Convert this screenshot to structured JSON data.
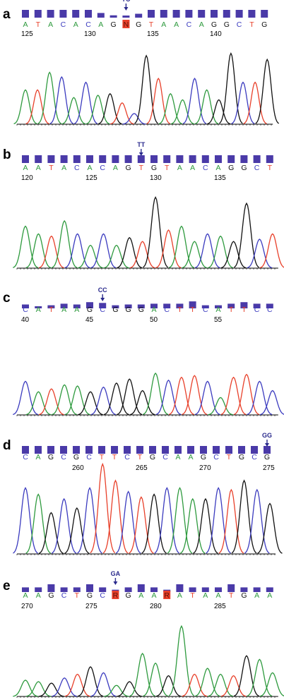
{
  "colors": {
    "A": "#2e9a3e",
    "C": "#3b3bbf",
    "G": "#111111",
    "T": "#e8402a",
    "N": "#e8402a",
    "R": "#e8402a",
    "quality": "#4a3aa8",
    "arrow": "#2a2a8c",
    "baseline": "#000000"
  },
  "chart_data": [
    {
      "type": "line",
      "panel": "a",
      "bases": [
        "A",
        "T",
        "A",
        "C",
        "A",
        "C",
        "A",
        "G",
        "N",
        "G",
        "T",
        "A",
        "A",
        "C",
        "A",
        "G",
        "G",
        "C",
        "T",
        "G"
      ],
      "ambiguous_index": 8,
      "positions": [
        {
          "index": 0,
          "label": "125"
        },
        {
          "index": 5,
          "label": "130"
        },
        {
          "index": 10,
          "label": "135"
        },
        {
          "index": 15,
          "label": "140"
        }
      ],
      "mutation": {
        "label": "TC",
        "index": 8
      },
      "quality": [
        1,
        1,
        1,
        1,
        1,
        1,
        0.6,
        0.3,
        0.2,
        0.5,
        1,
        1,
        1,
        1,
        1,
        1,
        1,
        1,
        1,
        1
      ],
      "peaks": [
        {
          "base": "A",
          "h": 0.45
        },
        {
          "base": "T",
          "h": 0.45
        },
        {
          "base": "A",
          "h": 0.68
        },
        {
          "base": "C",
          "h": 0.62
        },
        {
          "base": "A",
          "h": 0.35
        },
        {
          "base": "C",
          "h": 0.55
        },
        {
          "base": "A",
          "h": 0.38
        },
        {
          "base": "G",
          "h": 0.4
        },
        {
          "base": "T",
          "h": 0.28
        },
        {
          "base": "C",
          "h": 0.14
        },
        {
          "base": "G",
          "h": 0.9
        },
        {
          "base": "T",
          "h": 0.6
        },
        {
          "base": "A",
          "h": 0.4
        },
        {
          "base": "A",
          "h": 0.32
        },
        {
          "base": "C",
          "h": 0.6
        },
        {
          "base": "A",
          "h": 0.45
        },
        {
          "base": "G",
          "h": 0.32
        },
        {
          "base": "G",
          "h": 0.93
        },
        {
          "base": "C",
          "h": 0.55
        },
        {
          "base": "T",
          "h": 0.55
        },
        {
          "base": "G",
          "h": 0.85
        }
      ]
    },
    {
      "type": "line",
      "panel": "b",
      "bases": [
        "A",
        "A",
        "T",
        "A",
        "C",
        "A",
        "C",
        "A",
        "G",
        "T",
        "G",
        "T",
        "A",
        "A",
        "C",
        "A",
        "G",
        "G",
        "C",
        "T"
      ],
      "positions": [
        {
          "index": 0,
          "label": "120"
        },
        {
          "index": 5,
          "label": "125"
        },
        {
          "index": 10,
          "label": "130"
        },
        {
          "index": 15,
          "label": "135"
        }
      ],
      "mutation": {
        "label": "TT",
        "index": 9
      },
      "quality": [
        1,
        1,
        1,
        1,
        1,
        1,
        1,
        1,
        1,
        1,
        1,
        1,
        1,
        1,
        1,
        1,
        1,
        1,
        1,
        1
      ],
      "peaks": [
        {
          "base": "A",
          "h": 0.55
        },
        {
          "base": "A",
          "h": 0.45
        },
        {
          "base": "T",
          "h": 0.42
        },
        {
          "base": "A",
          "h": 0.62
        },
        {
          "base": "C",
          "h": 0.45
        },
        {
          "base": "A",
          "h": 0.3
        },
        {
          "base": "C",
          "h": 0.45
        },
        {
          "base": "A",
          "h": 0.3
        },
        {
          "base": "G",
          "h": 0.4
        },
        {
          "base": "T",
          "h": 0.35
        },
        {
          "base": "G",
          "h": 0.93
        },
        {
          "base": "T",
          "h": 0.5
        },
        {
          "base": "A",
          "h": 0.55
        },
        {
          "base": "A",
          "h": 0.35
        },
        {
          "base": "C",
          "h": 0.45
        },
        {
          "base": "A",
          "h": 0.42
        },
        {
          "base": "G",
          "h": 0.35
        },
        {
          "base": "G",
          "h": 0.85
        },
        {
          "base": "C",
          "h": 0.38
        },
        {
          "base": "T",
          "h": 0.45
        }
      ]
    },
    {
      "type": "line",
      "panel": "c",
      "bases": [
        "C",
        "A",
        "T",
        "A",
        "A",
        "G",
        "C",
        "G",
        "G",
        "G",
        "A",
        "C",
        "T",
        "T",
        "C",
        "A",
        "T",
        "T",
        "C",
        "C"
      ],
      "positions": [
        {
          "index": 0,
          "label": "40"
        },
        {
          "index": 5,
          "label": "45"
        },
        {
          "index": 10,
          "label": "50"
        },
        {
          "index": 15,
          "label": "55"
        }
      ],
      "mutation": {
        "label": "CC",
        "index": 6
      },
      "quality": [
        0.5,
        0.2,
        0.4,
        0.6,
        0.5,
        0.8,
        0.7,
        0.4,
        0.5,
        0.5,
        0.6,
        0.6,
        0.6,
        0.9,
        0.4,
        0.4,
        0.6,
        0.8,
        0.6,
        0.6
      ],
      "peaks": [
        {
          "base": "C",
          "h": 0.58
        },
        {
          "base": "A",
          "h": 0.4
        },
        {
          "base": "T",
          "h": 0.45
        },
        {
          "base": "A",
          "h": 0.52
        },
        {
          "base": "A",
          "h": 0.5
        },
        {
          "base": "G",
          "h": 0.4
        },
        {
          "base": "C",
          "h": 0.48
        },
        {
          "base": "G",
          "h": 0.55
        },
        {
          "base": "G",
          "h": 0.62
        },
        {
          "base": "G",
          "h": 0.42
        },
        {
          "base": "A",
          "h": 0.72
        },
        {
          "base": "C",
          "h": 0.6
        },
        {
          "base": "T",
          "h": 0.65
        },
        {
          "base": "T",
          "h": 0.68
        },
        {
          "base": "C",
          "h": 0.58
        },
        {
          "base": "A",
          "h": 0.3
        },
        {
          "base": "T",
          "h": 0.65
        },
        {
          "base": "T",
          "h": 0.7
        },
        {
          "base": "C",
          "h": 0.58
        },
        {
          "base": "C",
          "h": 0.42
        }
      ]
    },
    {
      "type": "line",
      "panel": "d",
      "bases": [
        "C",
        "A",
        "G",
        "C",
        "G",
        "C",
        "T",
        "T",
        "C",
        "T",
        "G",
        "C",
        "A",
        "A",
        "G",
        "C",
        "T",
        "G",
        "C",
        "G"
      ],
      "positions": [
        {
          "index": 4,
          "label": "260"
        },
        {
          "index": 9,
          "label": "265"
        },
        {
          "index": 14,
          "label": "270"
        },
        {
          "index": 19,
          "label": "275"
        }
      ],
      "mutation": {
        "label": "GG",
        "index": 19
      },
      "quality": [
        1,
        1,
        1,
        1,
        1,
        1,
        1,
        1,
        1,
        1,
        1,
        1,
        1,
        1,
        1,
        1,
        1,
        1,
        1,
        1
      ],
      "peaks": [
        {
          "base": "C",
          "h": 0.72
        },
        {
          "base": "A",
          "h": 0.65
        },
        {
          "base": "G",
          "h": 0.45
        },
        {
          "base": "C",
          "h": 0.6
        },
        {
          "base": "G",
          "h": 0.5
        },
        {
          "base": "C",
          "h": 0.72
        },
        {
          "base": "T",
          "h": 0.98
        },
        {
          "base": "T",
          "h": 0.8
        },
        {
          "base": "C",
          "h": 0.68
        },
        {
          "base": "T",
          "h": 0.62
        },
        {
          "base": "G",
          "h": 0.65
        },
        {
          "base": "C",
          "h": 0.72
        },
        {
          "base": "A",
          "h": 0.72
        },
        {
          "base": "A",
          "h": 0.6
        },
        {
          "base": "G",
          "h": 0.6
        },
        {
          "base": "C",
          "h": 0.72
        },
        {
          "base": "T",
          "h": 0.7
        },
        {
          "base": "G",
          "h": 0.8
        },
        {
          "base": "C",
          "h": 0.7
        },
        {
          "base": "G",
          "h": 0.55
        }
      ]
    },
    {
      "type": "line",
      "panel": "e",
      "bases": [
        "A",
        "A",
        "G",
        "C",
        "T",
        "G",
        "C",
        "R",
        "G",
        "A",
        "A",
        "R",
        "A",
        "T",
        "A",
        "A",
        "T",
        "G",
        "A",
        "A"
      ],
      "ambiguous_indices": [
        7,
        11
      ],
      "positions": [
        {
          "index": 0,
          "label": "270"
        },
        {
          "index": 5,
          "label": "275"
        },
        {
          "index": 10,
          "label": "280"
        },
        {
          "index": 15,
          "label": "285"
        }
      ],
      "mutation": {
        "label": "GA",
        "index": 7
      },
      "quality": [
        0.6,
        0.6,
        1,
        0.6,
        0.6,
        1,
        0.6,
        0.3,
        0.6,
        1,
        0.6,
        0.3,
        1,
        0.6,
        0.6,
        0.6,
        1,
        0.6,
        0.6,
        0.6
      ],
      "peaks": [
        {
          "base": "A",
          "h": 0.22
        },
        {
          "base": "A",
          "h": 0.2
        },
        {
          "base": "G",
          "h": 0.18
        },
        {
          "base": "C",
          "h": 0.25
        },
        {
          "base": "T",
          "h": 0.3
        },
        {
          "base": "G",
          "h": 0.4
        },
        {
          "base": "C",
          "h": 0.32
        },
        {
          "base": "A",
          "h": 0.15
        },
        {
          "base": "G",
          "h": 0.2
        },
        {
          "base": "A",
          "h": 0.58
        },
        {
          "base": "A",
          "h": 0.45
        },
        {
          "base": "G",
          "h": 0.28
        },
        {
          "base": "A",
          "h": 0.95
        },
        {
          "base": "T",
          "h": 0.3
        },
        {
          "base": "A",
          "h": 0.38
        },
        {
          "base": "A",
          "h": 0.3
        },
        {
          "base": "T",
          "h": 0.28
        },
        {
          "base": "G",
          "h": 0.55
        },
        {
          "base": "A",
          "h": 0.5
        },
        {
          "base": "A",
          "h": 0.32
        }
      ]
    }
  ]
}
